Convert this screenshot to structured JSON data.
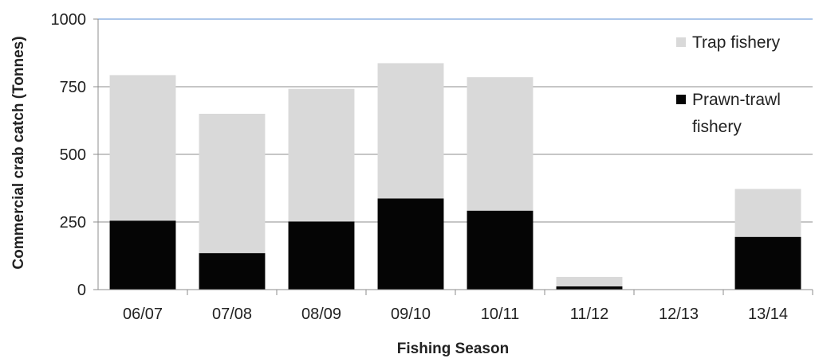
{
  "chart_data": {
    "type": "bar",
    "stacked": true,
    "title": "",
    "xlabel": "Fishing Season",
    "ylabel": "Commercial crab catch (Tonnes)",
    "ylim": [
      0,
      1000
    ],
    "yticks": [
      0,
      250,
      500,
      750,
      1000
    ],
    "categories": [
      "06/07",
      "07/08",
      "08/09",
      "09/10",
      "10/11",
      "11/12",
      "12/13",
      "13/14"
    ],
    "series": [
      {
        "name": "Prawn-trawl fishery",
        "legend_lines": [
          "Prawn-trawl",
          "fishery"
        ],
        "color": "#050505",
        "values": [
          255,
          135,
          252,
          337,
          292,
          12,
          0,
          195
        ]
      },
      {
        "name": "Trap fishery",
        "legend_lines": [
          "Trap fishery"
        ],
        "color": "#d9d9d9",
        "values": [
          538,
          515,
          490,
          500,
          493,
          35,
          0,
          177
        ]
      }
    ],
    "grid": "horizontal",
    "legend_position": "right"
  }
}
